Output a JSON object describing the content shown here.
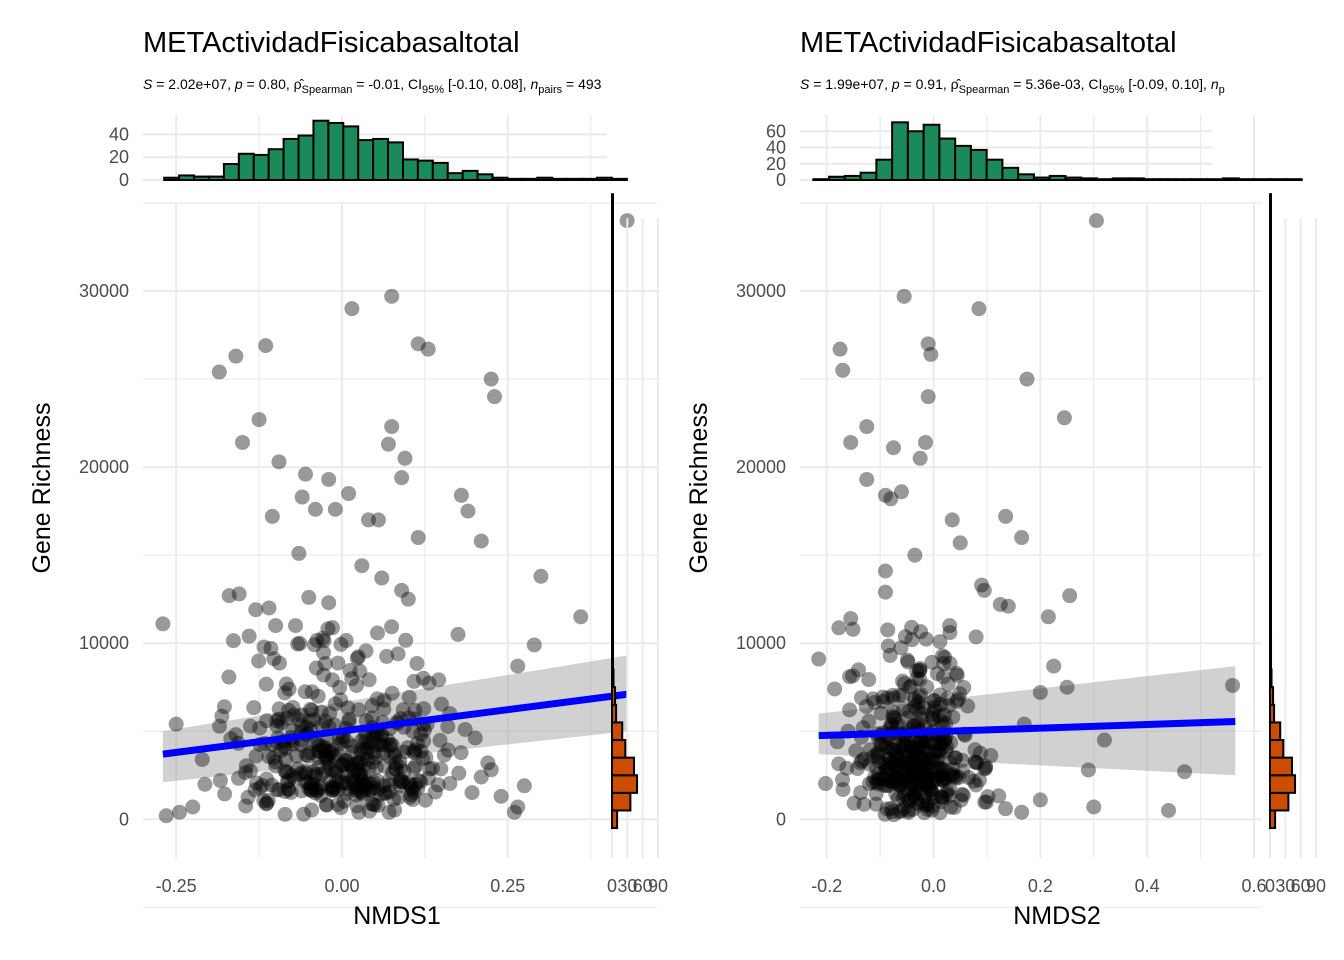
{
  "chart_data": [
    {
      "type": "scatter",
      "title": "METActividadFisicabasaltotal",
      "subtitle": {
        "stat_prefix": "S",
        "stat_value": " = 2.02e+07, ",
        "p_prefix": "p",
        "p_value": " = 0.80, ",
        "rho_symbol": "ρ̂",
        "rho_sub": "Spearman",
        "rho_value": " = -0.01, CI",
        "ci_sub": "95%",
        "ci_value": " [-0.10, 0.08], ",
        "n_prefix": "n",
        "n_sub": "pairs",
        "n_value": " = 493"
      },
      "xlabel": "NMDS1",
      "ylabel": "Gene Richness",
      "xlim": [
        -0.3,
        0.475
      ],
      "ylim": [
        -2200,
        35000
      ],
      "xticks": [
        "-0.25",
        "0.00",
        "0.25"
      ],
      "xtick_values": [
        -0.25,
        0.0,
        0.25
      ],
      "yticks": [
        "0",
        "10000",
        "20000",
        "30000"
      ],
      "ytick_values": [
        0,
        10000,
        20000,
        30000
      ],
      "top_hist": {
        "yticks": [
          "0",
          "20",
          "40"
        ],
        "ytick_values": [
          0,
          20,
          40
        ],
        "ymax": 57,
        "bin_start": -0.268,
        "bin_width": 0.0225,
        "counts": [
          2,
          4,
          3,
          3,
          14,
          23,
          22,
          27,
          36,
          39,
          52,
          50,
          47,
          35,
          36,
          33,
          18,
          17,
          15,
          6,
          8,
          5,
          2,
          1,
          1,
          2,
          1,
          1,
          1,
          2,
          1
        ],
        "color": "#1b8a5a"
      },
      "right_hist": {
        "xticks": [
          "0",
          "30",
          "60",
          "90"
        ],
        "xtick_values": [
          0,
          30,
          60,
          90
        ],
        "bin_start": -500,
        "bin_width": 1000,
        "counts": [
          10,
          36,
          49,
          43,
          26,
          20,
          8,
          6,
          3,
          2,
          2,
          1,
          1,
          1,
          1,
          1,
          1,
          1,
          1,
          1,
          1,
          1,
          1,
          1,
          1,
          1,
          1,
          1,
          1,
          1,
          1,
          1,
          1,
          1,
          1,
          1
        ],
        "color": "#cc4c02"
      },
      "regression": {
        "x": [
          -0.27,
          0.43
        ],
        "y": [
          3700,
          7100
        ],
        "ci_lower": [
          2100,
          5000
        ],
        "ci_upper": [
          5000,
          9300
        ],
        "color": "#0000ff"
      },
      "points": {
        "color": "#000000",
        "opacity": 0.4,
        "seed": 11,
        "x": [
          0.43,
          0.075,
          0.015,
          0.115,
          0.13,
          -0.115,
          -0.16,
          -0.185,
          0.225,
          0.23,
          0.075,
          0.07,
          -0.125,
          -0.15,
          0.095,
          -0.095,
          0.09,
          -0.055,
          -0.02,
          -0.06,
          -0.04,
          -0.01,
          0.18,
          0.19,
          0.01,
          0.04,
          0.055,
          -0.105,
          0.115,
          0.21,
          -0.065,
          0.03,
          0.06,
          0.09,
          0.1,
          -0.02,
          -0.05,
          0.3,
          -0.17,
          0.36,
          -0.11,
          -0.1,
          -0.14,
          -0.07,
          0.175,
          0.29,
          0.265,
          -0.27,
          -0.155,
          -0.13,
          -0.225,
          -0.245,
          -0.265,
          -0.25,
          0.21,
          0.22,
          0.24,
          0.26,
          0.265,
          0.275
        ],
        "y": [
          34000,
          29700,
          29000,
          27000,
          26700,
          26900,
          26300,
          25400,
          25000,
          24000,
          22300,
          21300,
          22700,
          21400,
          20500,
          20300,
          19400,
          19600,
          19300,
          18300,
          17600,
          17600,
          18400,
          17500,
          18500,
          17000,
          17000,
          17200,
          16000,
          15800,
          15100,
          14400,
          13700,
          13000,
          12500,
          12300,
          12600,
          13800,
          12700,
          11500,
          12000,
          11000,
          10400,
          11000,
          10500,
          9900,
          8700,
          11100,
          12800,
          11900,
          700,
          400,
          200,
          5400,
          2400,
          3200,
          1300,
          400,
          700,
          1900
        ]
      }
    },
    {
      "type": "scatter",
      "title": "METActividadFisicabasaltotal",
      "subtitle": {
        "stat_prefix": "S",
        "stat_value": " = 1.99e+07, ",
        "p_prefix": "p",
        "p_value": " = 0.91, ",
        "rho_symbol": "ρ̂",
        "rho_sub": "Spearman",
        "rho_value": " = 5.36e-03, CI",
        "ci_sub": "95%",
        "ci_value": " [-0.09, 0.10], ",
        "n_prefix": "n",
        "n_sub": "p"
      },
      "xlabel": "NMDS2",
      "ylabel": "Gene Richness",
      "xlim": [
        -0.25,
        0.615
      ],
      "ylim": [
        -2200,
        35000
      ],
      "xticks": [
        "-0.2",
        "0.0",
        "0.2",
        "0.4",
        "0.6"
      ],
      "xtick_values": [
        -0.2,
        0.0,
        0.2,
        0.4,
        0.6
      ],
      "yticks": [
        "0",
        "10000",
        "20000",
        "30000"
      ],
      "ytick_values": [
        0,
        10000,
        20000,
        30000
      ],
      "top_hist": {
        "yticks": [
          "0",
          "20",
          "40",
          "60"
        ],
        "ytick_values": [
          0,
          20,
          40,
          60
        ],
        "ymax": 80,
        "bin_start": -0.225,
        "bin_width": 0.0295,
        "counts": [
          1,
          4,
          5,
          9,
          25,
          71,
          60,
          68,
          51,
          42,
          37,
          25,
          15,
          7,
          3,
          5,
          3,
          2,
          1,
          2,
          2,
          1,
          1,
          1,
          1,
          1,
          2,
          1,
          1,
          1,
          1
        ],
        "color": "#1b8a5a"
      },
      "right_hist": {
        "xticks": [
          "0",
          "30",
          "60",
          "90"
        ],
        "xtick_values": [
          0,
          30,
          60,
          90
        ],
        "bin_start": -500,
        "bin_width": 1000,
        "counts": [
          10,
          36,
          49,
          43,
          26,
          20,
          8,
          6,
          3,
          2,
          2,
          1,
          1,
          1,
          1,
          1,
          1,
          1,
          1,
          1,
          1,
          1,
          1,
          1,
          1,
          1,
          1,
          1,
          1,
          1,
          1,
          1,
          1,
          1,
          1,
          1
        ],
        "color": "#cc4c02"
      },
      "regression": {
        "x": [
          -0.215,
          0.565
        ],
        "y": [
          4750,
          5550
        ],
        "ci_lower": [
          3700,
          2500
        ],
        "ci_upper": [
          6000,
          8700
        ],
        "color": "#0000ff"
      },
      "points": {
        "color": "#000000",
        "opacity": 0.4,
        "seed": 23,
        "x": [
          0.305,
          -0.055,
          0.085,
          -0.01,
          -0.175,
          -0.17,
          -0.005,
          0.175,
          0.245,
          -0.01,
          -0.125,
          -0.155,
          -0.075,
          -0.015,
          -0.025,
          -0.125,
          -0.09,
          -0.08,
          -0.06,
          0.135,
          0.165,
          0.095,
          -0.09,
          -0.09,
          -0.155,
          0.215,
          0.255,
          0.225,
          0.56,
          0.32,
          0.29,
          0.47,
          0.44,
          0.2,
          0.3,
          -0.215,
          -0.185,
          -0.18,
          -0.135,
          -0.16,
          0.125,
          0.05,
          0.035,
          -0.035,
          0.09,
          0.14,
          0.25,
          0.17,
          0.2,
          0.165
        ],
        "y": [
          34000,
          29700,
          29000,
          27000,
          26700,
          25500,
          26400,
          25000,
          22800,
          24000,
          22300,
          21400,
          21100,
          21400,
          20500,
          19300,
          18400,
          18200,
          18600,
          17200,
          16000,
          13000,
          14100,
          12900,
          11400,
          11500,
          12700,
          8700,
          7600,
          4500,
          2800,
          2700,
          500,
          1100,
          700,
          9100,
          7400,
          4400,
          6900,
          5000,
          12200,
          15700,
          17000,
          15000,
          13300,
          12100,
          7500,
          5400,
          7200,
          400
        ]
      }
    }
  ]
}
